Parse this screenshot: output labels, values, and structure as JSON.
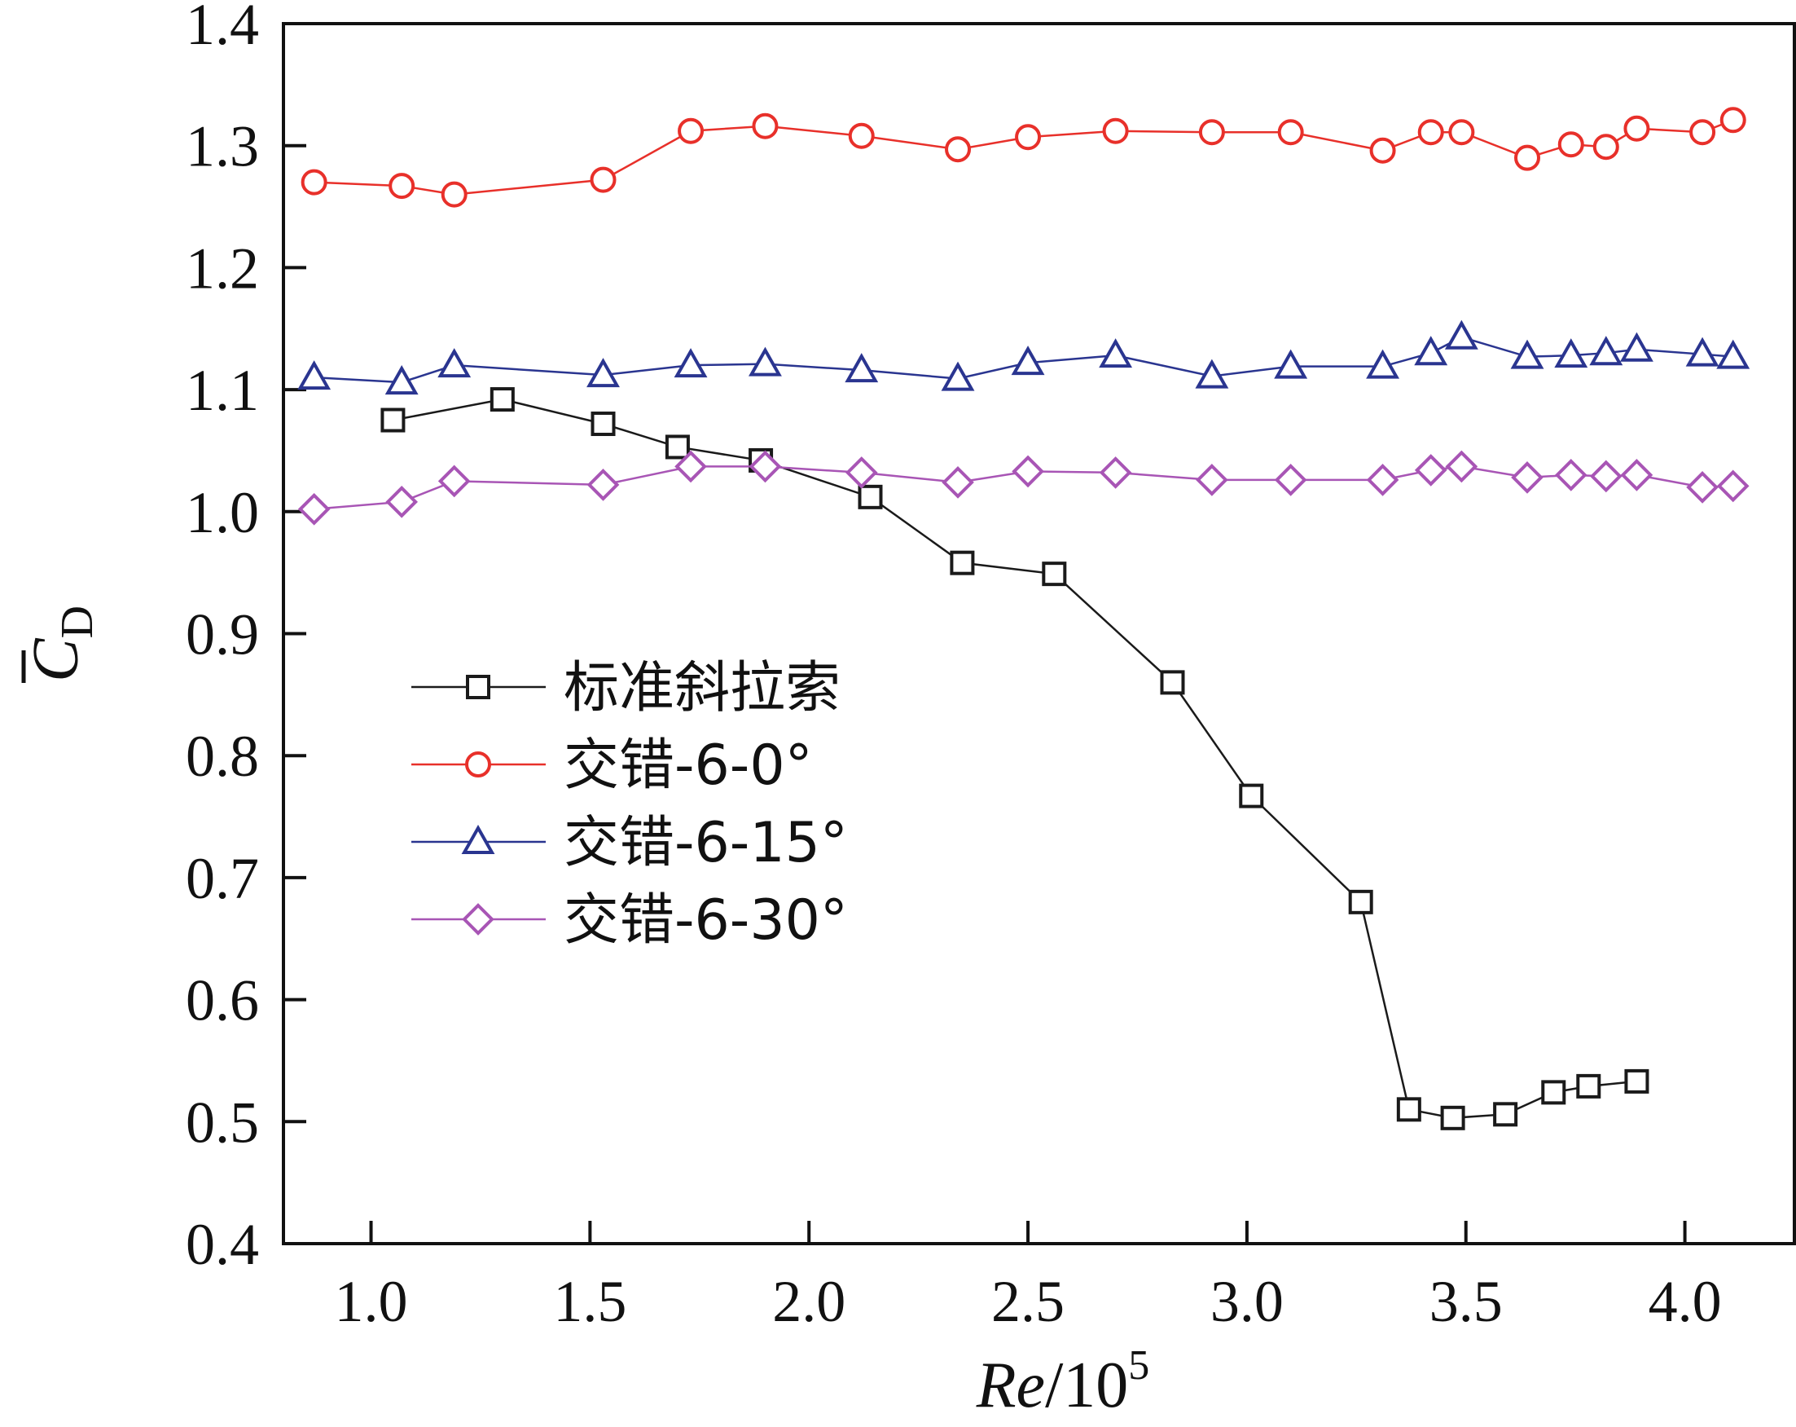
{
  "chart_data": {
    "type": "line",
    "xlabel_var": "Re",
    "xlabel_unit": "/10",
    "xlabel_exp": "5",
    "ylabel_var": "C",
    "ylabel_sub": "D",
    "xlim": [
      0.8,
      4.25
    ],
    "ylim": [
      0.4,
      1.4
    ],
    "xticks": [
      "1.0",
      "1.5",
      "2.0",
      "2.5",
      "3.0",
      "3.5",
      "4.0"
    ],
    "xtick_values": [
      1.0,
      1.5,
      2.0,
      2.5,
      3.0,
      3.5,
      4.0
    ],
    "yticks": [
      "0.4",
      "0.5",
      "0.6",
      "0.7",
      "0.8",
      "0.9",
      "1.0",
      "1.1",
      "1.2",
      "1.3",
      "1.4"
    ],
    "ytick_values": [
      0.4,
      0.5,
      0.6,
      0.7,
      0.8,
      0.9,
      1.0,
      1.1,
      1.2,
      1.3,
      1.4
    ],
    "legend_position": "middle-left",
    "series": [
      {
        "name": "标准斜拉索",
        "marker": "square",
        "color": "#1a1a1a",
        "x": [
          1.05,
          1.3,
          1.53,
          1.7,
          1.89,
          2.14,
          2.35,
          2.56,
          2.83,
          3.01,
          3.26,
          3.37,
          3.47,
          3.59,
          3.7,
          3.78,
          3.89
        ],
        "y": [
          1.075,
          1.092,
          1.072,
          1.053,
          1.042,
          1.012,
          0.958,
          0.949,
          0.86,
          0.767,
          0.68,
          0.51,
          0.503,
          0.506,
          0.524,
          0.529,
          0.533
        ]
      },
      {
        "name": "交错-6-0°",
        "marker": "circle",
        "color": "#e8302a",
        "x": [
          0.87,
          1.07,
          1.19,
          1.53,
          1.73,
          1.9,
          2.12,
          2.34,
          2.5,
          2.7,
          2.92,
          3.1,
          3.31,
          3.42,
          3.49,
          3.64,
          3.74,
          3.82,
          3.89,
          4.04,
          4.11
        ],
        "y": [
          1.27,
          1.267,
          1.26,
          1.272,
          1.312,
          1.316,
          1.308,
          1.297,
          1.307,
          1.312,
          1.311,
          1.311,
          1.296,
          1.311,
          1.311,
          1.29,
          1.301,
          1.299,
          1.314,
          1.311,
          1.321
        ]
      },
      {
        "name": "交错-6-15°",
        "marker": "triangle",
        "color": "#2a3590",
        "x": [
          0.87,
          1.07,
          1.19,
          1.53,
          1.73,
          1.9,
          2.12,
          2.34,
          2.5,
          2.7,
          2.92,
          3.1,
          3.31,
          3.42,
          3.49,
          3.64,
          3.74,
          3.82,
          3.89,
          4.04,
          4.11
        ],
        "y": [
          1.11,
          1.106,
          1.12,
          1.112,
          1.12,
          1.121,
          1.116,
          1.109,
          1.122,
          1.128,
          1.111,
          1.119,
          1.119,
          1.13,
          1.143,
          1.127,
          1.128,
          1.13,
          1.133,
          1.129,
          1.127
        ]
      },
      {
        "name": "交错-6-30°",
        "marker": "diamond",
        "color": "#a855b5",
        "x": [
          0.87,
          1.07,
          1.19,
          1.53,
          1.73,
          1.9,
          2.12,
          2.34,
          2.5,
          2.7,
          2.92,
          3.1,
          3.31,
          3.42,
          3.49,
          3.64,
          3.74,
          3.82,
          3.89,
          4.04,
          4.11
        ],
        "y": [
          1.002,
          1.008,
          1.025,
          1.022,
          1.037,
          1.037,
          1.032,
          1.024,
          1.033,
          1.032,
          1.026,
          1.026,
          1.026,
          1.034,
          1.037,
          1.028,
          1.03,
          1.029,
          1.03,
          1.02,
          1.021
        ]
      }
    ]
  }
}
